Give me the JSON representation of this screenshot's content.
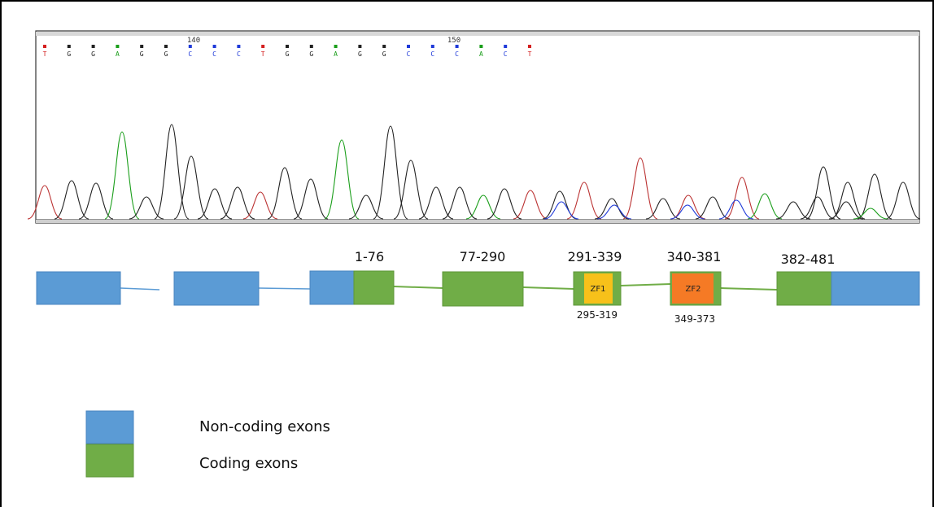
{
  "chromatogram": {
    "ruler_labels": [
      "140",
      "150"
    ],
    "bases": [
      "T",
      "G",
      "G",
      "A",
      "G",
      "G",
      "C",
      "C",
      "C",
      "T",
      "G",
      "G",
      "A",
      "G",
      "G",
      "C",
      "C",
      "C",
      "A",
      "C",
      "T"
    ],
    "base_colors": {
      "A": "#1a9e1a",
      "C": "#1f3ad9",
      "G": "#222222",
      "T": "#d42020"
    }
  },
  "gene": {
    "exon_labels": [
      "1-76",
      "77-290",
      "291-339",
      "340-381",
      "382-481"
    ],
    "domains": [
      {
        "name": "ZF1",
        "range": "295-319",
        "color": "#f7c11a"
      },
      {
        "name": "ZF2",
        "range": "349-373",
        "color": "#f57a25"
      }
    ]
  },
  "colors": {
    "non_coding": "#5b9bd5",
    "coding": "#70ad47",
    "intron": "#70ad47"
  },
  "legend": {
    "non_coding": "Non-coding exons",
    "coding": "Coding exons"
  }
}
